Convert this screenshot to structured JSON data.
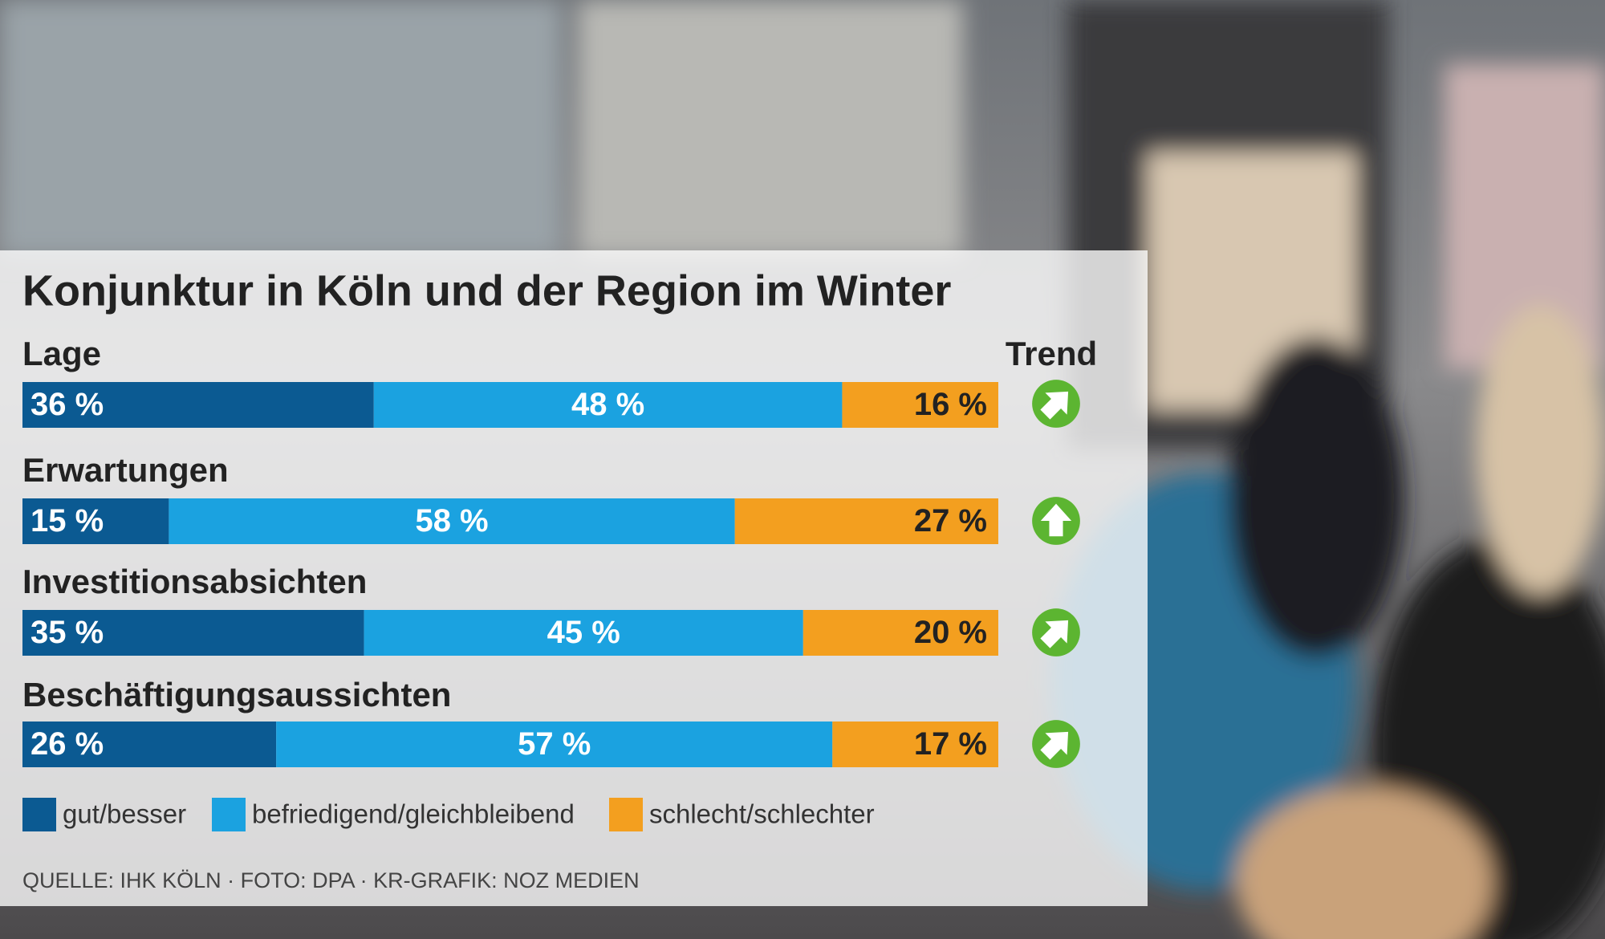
{
  "chart_data": {
    "type": "bar",
    "title": "Konjunktur in Köln und der Region im Winter",
    "categories": [
      "Lage",
      "Erwartungen",
      "Investitionsabsichten",
      "Beschäftigungsaussichten"
    ],
    "series": [
      {
        "name": "gut/besser",
        "color": "#0b5a92",
        "values": [
          36,
          15,
          35,
          26
        ],
        "value_labels": [
          "36 %",
          "15 %",
          "35 %",
          "26 %"
        ]
      },
      {
        "name": "befriedigend/gleichbleibend",
        "color": "#1ba2e0",
        "values": [
          48,
          58,
          45,
          57
        ],
        "value_labels": [
          "48 %",
          "58 %",
          "45 %",
          "57 %"
        ]
      },
      {
        "name": "schlecht/schlechter",
        "color": "#f39f1f",
        "values": [
          16,
          27,
          20,
          17
        ],
        "value_labels": [
          "16 %",
          "27 %",
          "20 %",
          "17 %"
        ]
      }
    ],
    "xlim": [
      0,
      100
    ],
    "stacked": true,
    "orientation": "horizontal",
    "trend_label": "Trend",
    "source": "QUELLE: IHK KÖLN · FOTO: DPA · KR-GRAFIK: NOZ MEDIEN"
  }
}
